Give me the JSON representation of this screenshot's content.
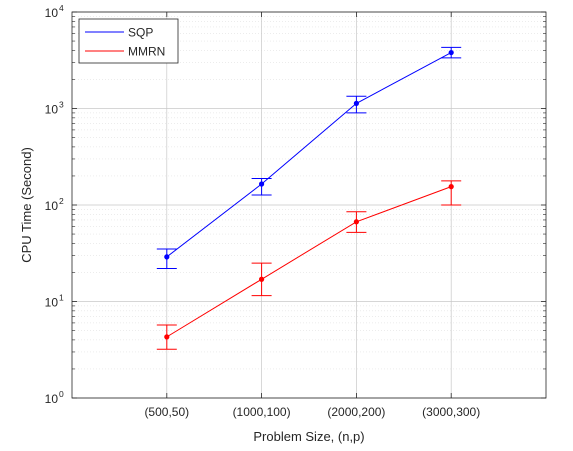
{
  "chart_data": {
    "type": "line",
    "xlabel": "Problem Size, (n,p)",
    "ylabel": "CPU Time (Second)",
    "categories": [
      "(500,50)",
      "(1000,100)",
      "(2000,200)",
      "(3000,300)"
    ],
    "y_scale": "log",
    "ylim": [
      1,
      10000
    ],
    "y_ticks": [
      {
        "base": "10",
        "exp": "0"
      },
      {
        "base": "10",
        "exp": "1"
      },
      {
        "base": "10",
        "exp": "2"
      },
      {
        "base": "10",
        "exp": "3"
      },
      {
        "base": "10",
        "exp": "4"
      }
    ],
    "grid": true,
    "minor_grid": true,
    "legend_position": "top-left",
    "series": [
      {
        "name": "SQP",
        "color": "#0000ff",
        "values": [
          29,
          165,
          1130,
          3800
        ],
        "error_low": [
          22,
          127,
          900,
          3350
        ],
        "error_high": [
          35,
          188,
          1340,
          4300
        ]
      },
      {
        "name": "MMRN",
        "color": "#ff0000",
        "values": [
          4.3,
          17,
          67,
          155
        ],
        "error_low": [
          3.2,
          11.5,
          52,
          100
        ],
        "error_high": [
          5.7,
          25,
          85,
          178
        ]
      }
    ]
  }
}
